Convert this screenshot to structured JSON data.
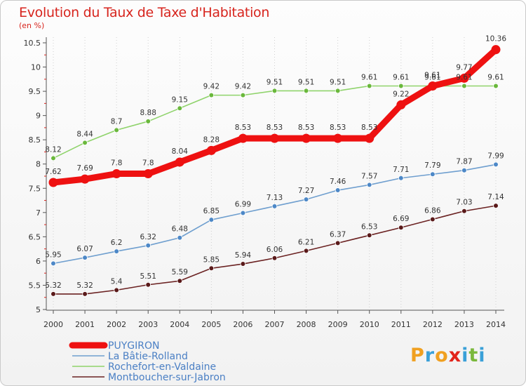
{
  "chart_data": {
    "type": "line",
    "title": "Evolution du Taux de Taxe d'Habitation",
    "subtitle": "(en %)",
    "x": [
      2000,
      2001,
      2002,
      2003,
      2004,
      2005,
      2006,
      2007,
      2008,
      2009,
      2010,
      2011,
      2012,
      2013,
      2014
    ],
    "x_tick_labels": [
      "2000",
      "2001",
      "2002",
      "2003",
      "2004",
      "2005",
      "2006",
      "2007",
      "2008",
      "2009",
      "2010",
      "2011",
      "2012",
      "2013",
      "2014"
    ],
    "y_tick_labels": [
      "5",
      "5.5",
      "6",
      "6.5",
      "7",
      "7.5",
      "8",
      "8.5",
      "9",
      "9.5",
      "10",
      "10.5"
    ],
    "ylim": [
      5,
      10.5
    ],
    "grid": "vertical-dotted",
    "legend_position": "bottom-left",
    "series": [
      {
        "name": "Rochefort-en-Valdaine",
        "color": "#8fd36b",
        "marker": "#6ab83c",
        "values": [
          8.12,
          8.44,
          8.7,
          8.88,
          9.15,
          9.42,
          9.42,
          9.51,
          9.51,
          9.51,
          9.61,
          9.61,
          9.61,
          9.61,
          9.61
        ],
        "labels": [
          "8.12",
          "8.44",
          "8.7",
          "8.88",
          "9.15",
          "9.42",
          "9.42",
          "9.51",
          "9.51",
          "9.51",
          "9.61",
          "9.61",
          "9.61",
          "9.61",
          "9.61"
        ]
      },
      {
        "name": "La Bâtie-Rolland",
        "color": "#6f9fcf",
        "marker": "#4d88c7",
        "values": [
          5.95,
          6.07,
          6.2,
          6.32,
          6.48,
          6.85,
          6.99,
          7.13,
          7.27,
          7.46,
          7.57,
          7.71,
          7.79,
          7.87,
          7.99
        ],
        "labels": [
          "5.95",
          "6.07",
          "6.2",
          "6.32",
          "6.48",
          "6.85",
          "6.99",
          "7.13",
          "7.27",
          "7.46",
          "7.57",
          "7.71",
          "7.79",
          "7.87",
          "7.99"
        ]
      },
      {
        "name": "Montboucher-sur-Jabron",
        "color": "#6b2222",
        "marker": "#5a1a1a",
        "values": [
          5.32,
          5.32,
          5.4,
          5.51,
          5.59,
          5.85,
          5.94,
          6.06,
          6.21,
          6.37,
          6.53,
          6.69,
          6.86,
          7.03,
          7.14
        ],
        "labels": [
          "5.32",
          "5.32",
          "5.4",
          "5.51",
          "5.59",
          "5.85",
          "5.94",
          "6.06",
          "6.21",
          "6.37",
          "6.53",
          "6.69",
          "6.86",
          "7.03",
          "7.14"
        ]
      },
      {
        "name": "PUYGIRON",
        "color": "#ee1111",
        "marker": "#ee1111",
        "values": [
          7.62,
          7.69,
          7.8,
          7.8,
          8.04,
          8.28,
          8.53,
          8.53,
          8.53,
          8.53,
          8.53,
          9.22,
          9.61,
          9.77,
          10.36
        ],
        "labels": [
          "7.62",
          "7.69",
          "7.8",
          "7.8",
          "8.04",
          "8.28",
          "8.53",
          "8.53",
          "8.53",
          "8.53",
          "8.53",
          "9.22",
          "9.61",
          "9.77",
          "10.36"
        ]
      }
    ],
    "legend": [
      "PUYGIRON",
      "La Bâtie-Rolland",
      "Rochefort-en-Valdaine",
      "Montboucher-sur-Jabron"
    ]
  },
  "logo": {
    "letters": [
      "P",
      "r",
      "o",
      "x",
      "i",
      "t",
      "i"
    ],
    "colors": [
      "#f0a020",
      "#3aa0d8",
      "#f0a020",
      "#e2231a",
      "#3aa0d8",
      "#7ab83c",
      "#3aa0d8"
    ]
  }
}
